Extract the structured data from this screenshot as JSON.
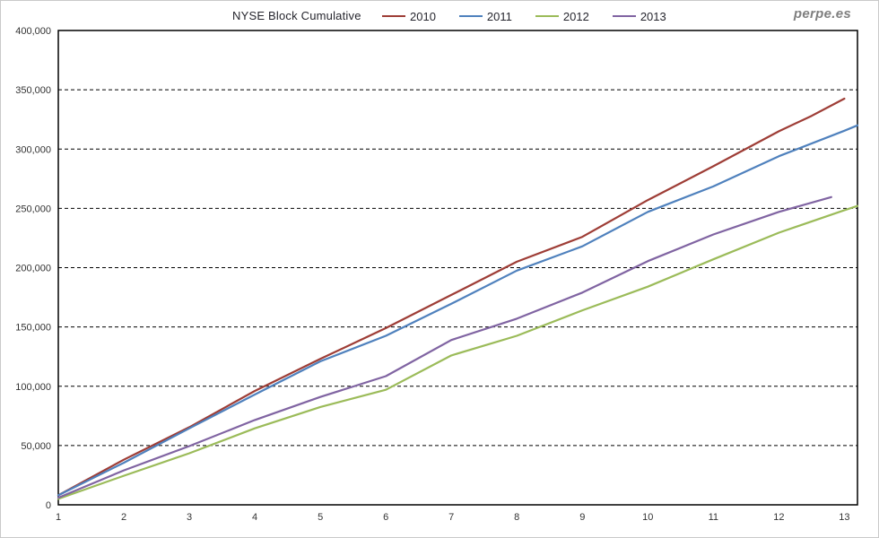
{
  "watermark": "perpe.es",
  "chart_data": {
    "type": "line",
    "title": "NYSE Block Cumulative",
    "xlabel": "",
    "ylabel": "",
    "xlim": [
      1,
      13.2
    ],
    "ylim": [
      0,
      400000
    ],
    "ytick_step": 50000,
    "xticks": [
      1,
      2,
      3,
      4,
      5,
      6,
      7,
      8,
      9,
      10,
      11,
      12,
      13
    ],
    "grid": "horizontal-dashed-black",
    "legend_position": "top",
    "series": [
      {
        "name": "2010",
        "color": "#9E3D36",
        "points": [
          [
            1,
            8000
          ],
          [
            2,
            38000
          ],
          [
            3,
            65500
          ],
          [
            4,
            96000
          ],
          [
            5,
            123000
          ],
          [
            6,
            149000
          ],
          [
            7,
            177000
          ],
          [
            8,
            205000
          ],
          [
            9,
            226000
          ],
          [
            10,
            257000
          ],
          [
            11,
            285500
          ],
          [
            12,
            315000
          ],
          [
            12.5,
            328000
          ],
          [
            13,
            342500
          ]
        ]
      },
      {
        "name": "2011",
        "color": "#4F81BD",
        "points": [
          [
            1,
            8000
          ],
          [
            2,
            35500
          ],
          [
            3,
            64500
          ],
          [
            4,
            93000
          ],
          [
            5,
            121000
          ],
          [
            6,
            142500
          ],
          [
            7,
            169500
          ],
          [
            8,
            197500
          ],
          [
            9,
            218000
          ],
          [
            10,
            247000
          ],
          [
            11,
            268500
          ],
          [
            12,
            294000
          ],
          [
            13,
            315500
          ],
          [
            13.2,
            320000
          ]
        ]
      },
      {
        "name": "2012",
        "color": "#9BBB59",
        "points": [
          [
            1,
            5000
          ],
          [
            2,
            24500
          ],
          [
            3,
            43500
          ],
          [
            4,
            64500
          ],
          [
            5,
            82500
          ],
          [
            6,
            97000
          ],
          [
            7,
            126000
          ],
          [
            8,
            142500
          ],
          [
            9,
            164000
          ],
          [
            10,
            184000
          ],
          [
            11,
            207000
          ],
          [
            12,
            229500
          ],
          [
            13,
            248500
          ],
          [
            13.2,
            252000
          ]
        ]
      },
      {
        "name": "2013",
        "color": "#8064A2",
        "points": [
          [
            1,
            6000
          ],
          [
            2,
            29000
          ],
          [
            3,
            49500
          ],
          [
            4,
            71500
          ],
          [
            5,
            91000
          ],
          [
            6,
            108500
          ],
          [
            7,
            139000
          ],
          [
            8,
            157000
          ],
          [
            9,
            179000
          ],
          [
            10,
            205500
          ],
          [
            11,
            228000
          ],
          [
            12,
            247000
          ],
          [
            12.8,
            259500
          ]
        ]
      }
    ]
  }
}
